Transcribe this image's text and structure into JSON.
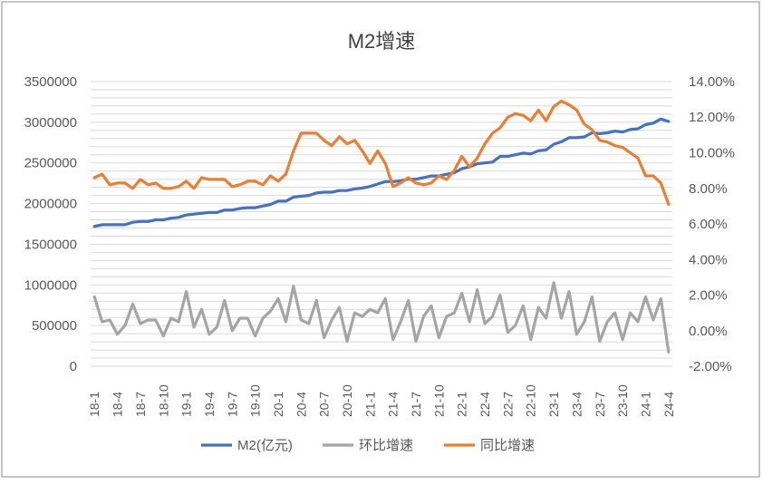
{
  "chart_data": {
    "type": "line",
    "title": "M2增速",
    "x": [
      "18-1",
      "18-2",
      "18-3",
      "18-4",
      "18-5",
      "18-6",
      "18-7",
      "18-8",
      "18-9",
      "18-10",
      "18-11",
      "18-12",
      "19-1",
      "19-2",
      "19-3",
      "19-4",
      "19-5",
      "19-6",
      "19-7",
      "19-8",
      "19-9",
      "19-10",
      "19-11",
      "19-12",
      "20-1",
      "20-2",
      "20-3",
      "20-4",
      "20-5",
      "20-6",
      "20-7",
      "20-8",
      "20-9",
      "20-10",
      "20-11",
      "20-12",
      "21-1",
      "21-2",
      "21-3",
      "21-4",
      "21-5",
      "21-6",
      "21-7",
      "21-8",
      "21-9",
      "21-10",
      "21-11",
      "21-12",
      "22-1",
      "22-2",
      "22-3",
      "22-4",
      "22-5",
      "22-6",
      "22-7",
      "22-8",
      "22-9",
      "22-10",
      "22-11",
      "22-12",
      "23-1",
      "23-2",
      "23-3",
      "23-4",
      "23-5",
      "23-6",
      "23-7",
      "23-8",
      "23-9",
      "23-10",
      "23-11",
      "23-12",
      "24-1",
      "24-2",
      "24-3",
      "24-4"
    ],
    "xtick_labels": [
      "18-1",
      "18-4",
      "18-7",
      "18-10",
      "19-1",
      "19-4",
      "19-7",
      "19-10",
      "20-1",
      "20-4",
      "20-7",
      "20-10",
      "21-1",
      "21-4",
      "21-7",
      "21-10",
      "22-1",
      "22-4",
      "22-7",
      "22-10",
      "23-1",
      "23-4",
      "23-7",
      "23-10",
      "24-1",
      "24-4"
    ],
    "y_left": {
      "ylim": [
        0,
        3500000
      ],
      "ticks": [
        "0",
        "500000",
        "1000000",
        "1500000",
        "2000000",
        "2500000",
        "3000000",
        "3500000"
      ]
    },
    "y_right": {
      "ylim": [
        -0.02,
        0.14
      ],
      "ticks": [
        "-2.00%",
        "0.00%",
        "2.00%",
        "4.00%",
        "6.00%",
        "8.00%",
        "10.00%",
        "12.00%",
        "14.00%"
      ]
    },
    "legend_position": "bottom",
    "grid": true,
    "series": [
      {
        "name": "M2(亿元)",
        "axis": "left",
        "color": "#4472C4",
        "values": [
          1720000,
          1740000,
          1740000,
          1740000,
          1740000,
          1770000,
          1780000,
          1780000,
          1800000,
          1800000,
          1820000,
          1830000,
          1860000,
          1870000,
          1880000,
          1890000,
          1890000,
          1920000,
          1920000,
          1940000,
          1950000,
          1950000,
          1970000,
          1990000,
          2030000,
          2030000,
          2080000,
          2090000,
          2100000,
          2130000,
          2140000,
          2140000,
          2160000,
          2160000,
          2180000,
          2190000,
          2210000,
          2240000,
          2270000,
          2270000,
          2280000,
          2300000,
          2300000,
          2320000,
          2340000,
          2340000,
          2360000,
          2380000,
          2430000,
          2450000,
          2490000,
          2500000,
          2510000,
          2580000,
          2580000,
          2600000,
          2620000,
          2610000,
          2650000,
          2660000,
          2730000,
          2760000,
          2810000,
          2810000,
          2820000,
          2870000,
          2860000,
          2870000,
          2890000,
          2880000,
          2910000,
          2920000,
          2970000,
          2990000,
          3040000,
          3010000
        ]
      },
      {
        "name": "环比增速",
        "axis": "right",
        "color": "#A5A5A5",
        "values": [
          0.019,
          0.005,
          0.006,
          -0.002,
          0.003,
          0.015,
          0.004,
          0.006,
          0.006,
          -0.003,
          0.007,
          0.005,
          0.022,
          0.002,
          0.012,
          -0.002,
          0.002,
          0.017,
          0.0,
          0.007,
          0.007,
          -0.003,
          0.007,
          0.011,
          0.018,
          0.005,
          0.025,
          0.006,
          0.004,
          0.017,
          -0.004,
          0.006,
          0.013,
          -0.006,
          0.01,
          0.008,
          0.012,
          0.01,
          0.018,
          -0.005,
          0.005,
          0.017,
          -0.006,
          0.008,
          0.014,
          -0.004,
          0.008,
          0.01,
          0.021,
          0.005,
          0.023,
          0.004,
          0.008,
          0.02,
          -0.001,
          0.003,
          0.014,
          -0.005,
          0.013,
          0.007,
          0.027,
          0.007,
          0.022,
          -0.002,
          0.005,
          0.019,
          -0.006,
          0.005,
          0.01,
          -0.005,
          0.01,
          0.005,
          0.019,
          0.006,
          0.018,
          -0.012
        ]
      },
      {
        "name": "同比增速",
        "axis": "right",
        "color": "#ED7D31",
        "values": [
          0.086,
          0.088,
          0.082,
          0.083,
          0.083,
          0.08,
          0.085,
          0.082,
          0.083,
          0.08,
          0.08,
          0.081,
          0.084,
          0.08,
          0.086,
          0.085,
          0.085,
          0.085,
          0.081,
          0.082,
          0.084,
          0.084,
          0.082,
          0.087,
          0.084,
          0.088,
          0.101,
          0.111,
          0.111,
          0.111,
          0.107,
          0.104,
          0.109,
          0.105,
          0.107,
          0.101,
          0.094,
          0.101,
          0.094,
          0.081,
          0.083,
          0.086,
          0.083,
          0.082,
          0.083,
          0.087,
          0.085,
          0.09,
          0.098,
          0.092,
          0.097,
          0.105,
          0.111,
          0.114,
          0.12,
          0.122,
          0.121,
          0.118,
          0.124,
          0.118,
          0.126,
          0.129,
          0.127,
          0.124,
          0.116,
          0.113,
          0.107,
          0.106,
          0.104,
          0.103,
          0.1,
          0.097,
          0.087,
          0.087,
          0.083,
          0.071
        ]
      }
    ]
  }
}
